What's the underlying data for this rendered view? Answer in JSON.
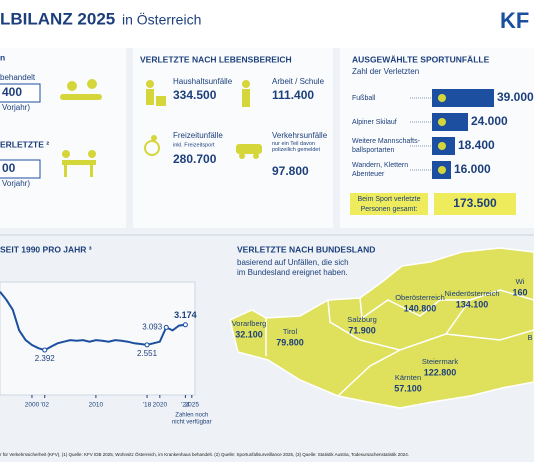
{
  "header": {
    "title": "LBILANZ 2025",
    "subtitle": "in Österreich",
    "logo": "KF"
  },
  "left": {
    "items": [
      {
        "label": "n",
        "note": "behandelt",
        "value": "400",
        "sub": "Vorjahr)"
      },
      {
        "label": "ERLETZTE ²",
        "value": "00",
        "sub": "Vorjahr)"
      }
    ]
  },
  "lebensbereich": {
    "title": "VERLETZTE NACH LEBENSBEREICH",
    "items": [
      {
        "label": "Haushaltsunfälle",
        "value": "334.500"
      },
      {
        "label": "Arbeit / Schule",
        "value": "111.400"
      },
      {
        "label": "Freizeitunfälle",
        "note": "inkl. Freizeitsport",
        "value": "280.700"
      },
      {
        "label": "Verkehrsunfälle",
        "note": "nur ein Teil davon polizeilich gemeldet",
        "value": "97.800"
      }
    ]
  },
  "sport": {
    "title": "AUSGEWÄHLTE SPORTUNFÄLLE",
    "subtitle": "Zahl der Verletzten",
    "items": [
      {
        "label": "Fußball",
        "value": "39.000"
      },
      {
        "label": "Alpiner Skilauf",
        "value": "24.000"
      },
      {
        "label": "Weitere Mannschafts-",
        "label2": "ballsportarten",
        "value": "18.400"
      },
      {
        "label": "Wandern, Klettern",
        "label2": "Abenteuer",
        "value": "16.000"
      }
    ],
    "total_label": "Beim Sport verletzte",
    "total_label2": "Personen gesamt:",
    "total": "173.500"
  },
  "map": {
    "title": "VERLETZTE NACH BUNDESLAND",
    "text": "basierend auf Unfällen, die sich",
    "text2": "im Bundesland ereignet haben.",
    "regions": [
      {
        "name": "Vorarlberg",
        "value": "32.100"
      },
      {
        "name": "Tirol",
        "value": "79.800"
      },
      {
        "name": "Salzburg",
        "value": "71.900"
      },
      {
        "name": "Oberösterreich",
        "value": "140.800"
      },
      {
        "name": "Niederösterreich",
        "value": "134.100"
      },
      {
        "name": "Wi",
        "value": "160"
      },
      {
        "name": "Steiermark",
        "value": "122.800"
      },
      {
        "name": "Kärnten",
        "value": "57.100"
      },
      {
        "name": "B",
        "value": ""
      }
    ]
  },
  "footer": "r für Verkehrssicherheit (KFV), (1) Quelle: KFV IDB 2025, Wohnsitz Österreich, im Krankenhaus behandelt. (2) Quelle: Sportunfallsurveillance 2025, (3) Quelle: Statistik Austria, Todesursachenstatistik 2024.",
  "chart_data": {
    "type": "line",
    "title": "SEIT 1990 PRO JAHR ³",
    "x": [
      1995,
      1996,
      1997,
      1998,
      1999,
      2000,
      2001,
      2002,
      2003,
      2004,
      2005,
      2006,
      2007,
      2008,
      2009,
      2010,
      2011,
      2012,
      2013,
      2014,
      2015,
      2016,
      2017,
      2018,
      2019,
      2020,
      2021,
      2022,
      2023,
      2024
    ],
    "values": [
      4200,
      3950,
      3640,
      3000,
      2700,
      2550,
      2450,
      2392,
      2500,
      2600,
      2650,
      2700,
      2680,
      2700,
      2650,
      2700,
      2680,
      2650,
      2700,
      2680,
      2650,
      2600,
      2580,
      2551,
      2600,
      2650,
      3093,
      3000,
      3150,
      3174
    ],
    "value_labels": [
      null,
      null,
      null,
      null,
      null,
      null,
      null,
      "2.392",
      null,
      null,
      null,
      null,
      null,
      null,
      null,
      null,
      null,
      null,
      null,
      null,
      null,
      null,
      null,
      "2.551",
      null,
      null,
      "3.093",
      null,
      null,
      "3.174"
    ],
    "color": "#1c4fa0",
    "xlim": [
      1995,
      2025.5
    ],
    "ylim": [
      1000,
      4500
    ],
    "xticks": [
      2000,
      {
        "value": 2002,
        "label": "'02"
      },
      2010,
      {
        "value": 2018,
        "label": "'18"
      },
      2020,
      {
        "value": 2024,
        "label": "'24"
      },
      2025
    ],
    "note": "Zahlen noch",
    "note2": "nicht verfügbar"
  }
}
